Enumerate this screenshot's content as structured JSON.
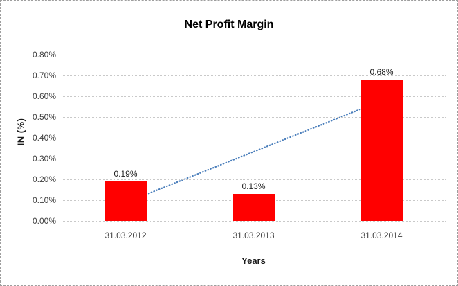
{
  "colors": {
    "background": "#ffffff",
    "outer_border": "#9e9e9e",
    "bar": "#ff0000",
    "gridline": "#c9c9c9",
    "trendline": "#4a7ebb",
    "tick_text": "#3f3f3f",
    "title_text": "#000000"
  },
  "chart_data": {
    "type": "bar",
    "title": "Net Profit Margin",
    "xlabel": "Years",
    "ylabel": "IN (%)",
    "categories": [
      "31.03.2012",
      "31.03.2013",
      "31.03.2014"
    ],
    "values": [
      0.19,
      0.13,
      0.68
    ],
    "data_labels": [
      "0.19%",
      "0.13%",
      "0.68%"
    ],
    "ylim": [
      0,
      0.8
    ],
    "ytick_step": 0.1,
    "ytick_labels": [
      "0.00%",
      "0.10%",
      "0.20%",
      "0.30%",
      "0.40%",
      "0.50%",
      "0.60%",
      "0.70%",
      "0.80%"
    ],
    "grid": true,
    "legend": "none",
    "bar_color": "#ff0000",
    "gridline_color": "#c9c9c9",
    "trendline": {
      "type": "linear",
      "style": "dotted",
      "color": "#4a7ebb",
      "start_value": 0.088,
      "end_value": 0.578
    }
  }
}
